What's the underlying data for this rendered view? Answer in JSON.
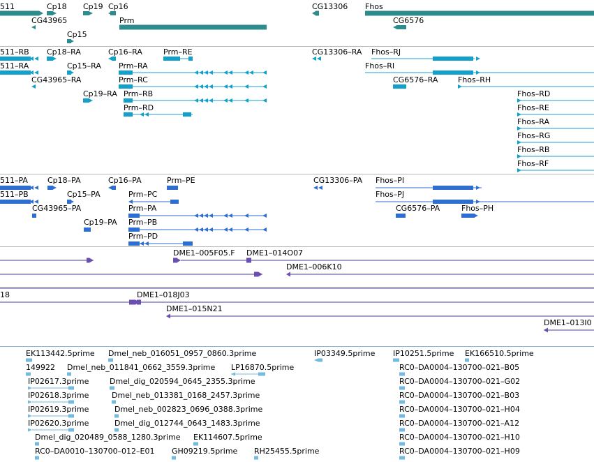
{
  "colors": {
    "gene": "#2e8c8c",
    "mrna": "#14a0cc",
    "protein": "#2f6ed1",
    "clone": "#6b4fb0",
    "est": "#74b9de",
    "line_clone": "#4a3b8c"
  },
  "tracks": {
    "genes": {
      "labels": {
        "g511": "511",
        "cp18": "Cp18",
        "cp19": "Cp19",
        "cp16": "Cp16",
        "cg13306": "CG13306",
        "fhos": "Fhos",
        "cg43965": "CG43965",
        "prm": "Prm",
        "cg6576": "CG6576",
        "cp15": "Cp15"
      }
    },
    "transcripts": {
      "labels": {
        "rb511": "511–RB",
        "cp18ra": "Cp18–RA",
        "cp16ra": "Cp16–RA",
        "prmre": "Prm–RE",
        "cg13306ra": "CG13306–RA",
        "fhosrj": "Fhos–RJ",
        "ra511": "511–RA",
        "cp15ra": "Cp15–RA",
        "prmra": "Prm–RA",
        "fhosri": "Fhos–RI",
        "cg43965ra": "CG43965–RA",
        "prmrc": "Prm–RC",
        "cg6576ra": "CG6576–RA",
        "fhosrh": "Fhos–RH",
        "cp19ra": "Cp19–RA",
        "prmrb": "Prm–RB",
        "fhosrd": "Fhos–RD",
        "prmrd": "Prm–RD",
        "fhosre": "Fhos–RE",
        "fhosra": "Fhos–RA",
        "fhosrg": "Fhos–RG",
        "fhosrb": "Fhos–RB",
        "fhosrf": "Fhos–RF"
      }
    },
    "proteins": {
      "labels": {
        "pa511": "511–PA",
        "cp18pa": "Cp18–PA",
        "cp16pa": "Cp16–PA",
        "prmpe": "Prm–PE",
        "cg13306pa": "CG13306–PA",
        "fhospi": "Fhos–PI",
        "pb511": "511–PB",
        "cp15pa": "Cp15–PA",
        "prmpc": "Prm–PC",
        "fhospj": "Fhos–PJ",
        "cg43965pa": "CG43965–PA",
        "prmpa": "Prm–PA",
        "cg6576pa": "CG6576–PA",
        "fhosph": "Fhos–PH",
        "cp19pa": "Cp19–PA",
        "prmpb": "Prm–PB",
        "prmpd": "Prm–PD"
      }
    },
    "clones": {
      "labels": {
        "c005f05": "DME1–005F05.F",
        "c014o07": "DME1–014O07",
        "c006k10": "DME1–006K10",
        "c18": "18",
        "c018j03": "DME1–018J03",
        "c015n21": "DME1–015N21",
        "c013i0": "DME1–013I0"
      }
    },
    "ests": {
      "labels": {
        "ek113442": "EK113442.5prime",
        "neb016051": "Dmel_neb_016051_0957_0860.3prime",
        "ip03349": "IP03349.5prime",
        "ip10251": "IP10251.5prime",
        "ek166510": "EK166510.5prime",
        "e149922": "149922",
        "neb011841": "Dmel_neb_011841_0662_3559.3prime",
        "lp16870": "LP16870.5prime",
        "rc0b05": "RC0–DA0004–130700–021–B05",
        "ip02617": "IP02617.3prime",
        "dig020594": "Dmel_dig_020594_0645_2355.3prime",
        "rc0g02": "RC0–DA0004–130700–021–G02",
        "ip02618": "IP02618.3prime",
        "neb013381": "Dmel_neb_013381_0168_2457.3prime",
        "rc0b03": "RC0–DA0004–130700–021–B03",
        "ip02619": "IP02619.3prime",
        "neb002823": "Dmel_neb_002823_0696_0388.3prime",
        "rc0h04": "RC0–DA0004–130700–021–H04",
        "ip02620": "IP02620.3prime",
        "dig012744": "Dmel_dig_012744_0643_1483.3prime",
        "rc0a12": "RC0–DA0004–130700–021–A12",
        "dig020489": "Dmel_dig_020489_0588_1280.3prime",
        "ek114607": "EK114607.5prime",
        "rc0h10": "RC0–DA0004–130700–021–H10",
        "rc0e01": "RC0–DA0010–130700–012–E01",
        "gh09219": "GH09219.5prime",
        "rh25455": "RH25455.5prime",
        "rc0h09": "RC0–DA0004–130700–021–H09"
      }
    }
  }
}
